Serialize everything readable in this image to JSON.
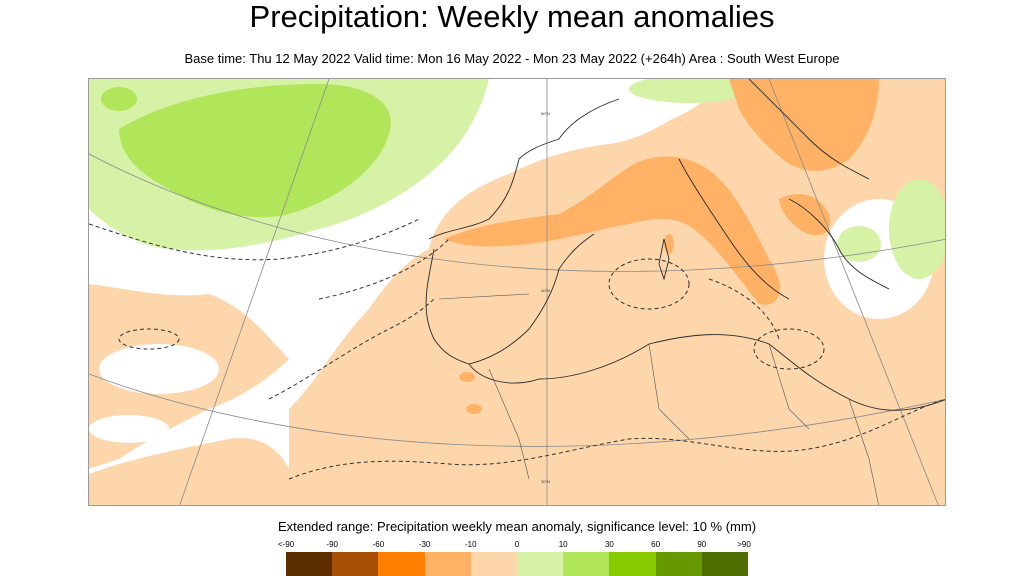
{
  "title": "Precipitation: Weekly mean anomalies",
  "subtitle": "Base time: Thu 12 May 2022 Valid time: Mon 16 May 2022 - Mon 23 May 2022 (+264h) Area : South West Europe",
  "map": {
    "area": "South West Europe",
    "graticule_labels": [
      "50°N",
      "40°N",
      "30°N"
    ]
  },
  "legend": {
    "title": "Extended range: Precipitation weekly mean anomaly, significance level: 10 % (mm)",
    "ticks": [
      "<-90",
      "-90",
      "-60",
      "-30",
      "-10",
      "0",
      "10",
      "30",
      "60",
      "90",
      ">90"
    ],
    "colors": [
      "#5c2e00",
      "#a64f05",
      "#ff8000",
      "#ffb266",
      "#fdd6ab",
      "#d6f2a6",
      "#b2e65a",
      "#88cc00",
      "#669900",
      "#4d6d00"
    ]
  }
}
